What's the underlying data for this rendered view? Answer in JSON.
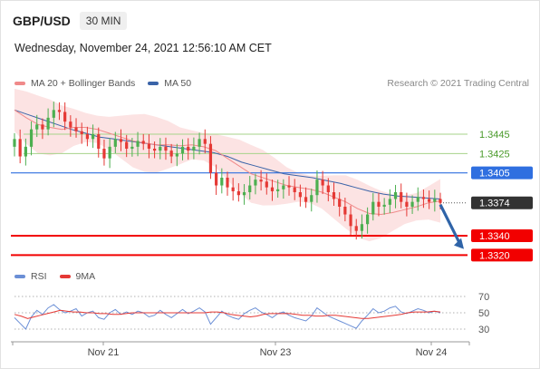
{
  "header": {
    "symbol": "GBP/USD",
    "interval": "30 MIN",
    "datetime": "Wednesday, November 24, 2021 12:56:10 AM CET"
  },
  "legend": {
    "ma20": "MA 20 + Bollinger Bands",
    "ma50": "MA 50",
    "credit": "Research © 2021 Trading Central"
  },
  "rsi_legend": {
    "rsi": "RSI",
    "ma": "9MA"
  },
  "colors": {
    "bollinger_fill": "#fbdede",
    "ma20": "#f08a8a",
    "ma50": "#3a63a8",
    "up_candle": "#4caf50",
    "down_candle": "#e53935",
    "pivot_green": "#a6d38a",
    "pivot_blue": "#2f6fe0",
    "support_red": "#f20000",
    "current_price": "#333333",
    "rsi": "#6b8fd6",
    "rsi_ma": "#e53935",
    "arrow": "#2f64a8"
  },
  "chart_data": [
    {
      "type": "candlestick",
      "title": "GBP/USD 30 MIN",
      "x_ticks": [
        "Nov 21",
        "Nov 23",
        "Nov 24"
      ],
      "ylim": [
        1.331,
        1.349
      ],
      "price_levels": [
        {
          "label": "1.3445",
          "value": 1.3445,
          "kind": "resistance",
          "color": "#a6d38a"
        },
        {
          "label": "1.3425",
          "value": 1.3425,
          "kind": "resistance",
          "color": "#a6d38a"
        },
        {
          "label": "1.3405",
          "value": 1.3405,
          "kind": "pivot",
          "color": "#2f6fe0"
        },
        {
          "label": "1.3374",
          "value": 1.3374,
          "kind": "last-price",
          "color": "#333333"
        },
        {
          "label": "1.3340",
          "value": 1.334,
          "kind": "support",
          "color": "#f20000"
        },
        {
          "label": "1.3320",
          "value": 1.332,
          "kind": "support",
          "color": "#f20000"
        }
      ],
      "close_path": [
        1.344,
        1.3422,
        1.3432,
        1.345,
        1.3455,
        1.345,
        1.3462,
        1.347,
        1.3468,
        1.3458,
        1.3452,
        1.3448,
        1.3445,
        1.344,
        1.3445,
        1.343,
        1.342,
        1.3432,
        1.344,
        1.3437,
        1.343,
        1.3432,
        1.3438,
        1.3435,
        1.343,
        1.3428,
        1.3432,
        1.3428,
        1.3422,
        1.3425,
        1.3432,
        1.3428,
        1.3432,
        1.344,
        1.3435,
        1.3405,
        1.3392,
        1.34,
        1.339,
        1.3386,
        1.3382,
        1.3385,
        1.3392,
        1.3398,
        1.3396,
        1.339,
        1.3386,
        1.3388,
        1.3392,
        1.339,
        1.3385,
        1.338,
        1.3375,
        1.3382,
        1.3398,
        1.3392,
        1.3385,
        1.3378,
        1.337,
        1.3362,
        1.335,
        1.3345,
        1.3352,
        1.3362,
        1.3375,
        1.337,
        1.3372,
        1.3378,
        1.3385,
        1.3375,
        1.337,
        1.3375,
        1.338,
        1.3378,
        1.3375,
        1.3378,
        1.3374
      ],
      "ma20": [
        1.347,
        1.3462,
        1.3455,
        1.3452,
        1.345,
        1.3452,
        1.3452,
        1.345,
        1.3446,
        1.3442,
        1.3438,
        1.3436,
        1.3434,
        1.3434,
        1.3433,
        1.3434,
        1.3432,
        1.3428,
        1.342,
        1.3412,
        1.3404,
        1.34,
        1.3396,
        1.3392,
        1.339,
        1.3388,
        1.3385,
        1.338,
        1.3375,
        1.3368,
        1.3363,
        1.3362,
        1.3364,
        1.3367,
        1.337,
        1.3374,
        1.3376
      ],
      "ma50": [
        1.347,
        1.3465,
        1.346,
        1.3455,
        1.345,
        1.3446,
        1.3442,
        1.344,
        1.3438,
        1.3436,
        1.3434,
        1.3432,
        1.343,
        1.3428,
        1.3426,
        1.3422,
        1.3416,
        1.3412,
        1.3408,
        1.3404,
        1.3402,
        1.34,
        1.3397,
        1.3394,
        1.339,
        1.3386,
        1.3383,
        1.3381,
        1.338,
        1.3379,
        1.3378
      ]
    },
    {
      "type": "line",
      "title": "RSI",
      "ylim": [
        20,
        80
      ],
      "y_ticks": [
        "70",
        "50",
        "30"
      ],
      "series": [
        {
          "name": "RSI",
          "values": [
            44,
            37,
            30,
            45,
            53,
            48,
            56,
            60,
            54,
            50,
            52,
            55,
            46,
            50,
            52,
            44,
            42,
            50,
            54,
            48,
            51,
            48,
            52,
            50,
            45,
            47,
            53,
            48,
            44,
            49,
            54,
            49,
            52,
            56,
            51,
            36,
            44,
            52,
            47,
            44,
            42,
            49,
            53,
            56,
            51,
            48,
            44,
            49,
            51,
            47,
            44,
            42,
            40,
            46,
            56,
            51,
            46,
            43,
            40,
            37,
            34,
            31,
            40,
            47,
            55,
            50,
            52,
            56,
            58,
            51,
            49,
            52,
            55,
            53,
            50,
            52,
            50
          ]
        },
        {
          "name": "9MA",
          "values": [
            48,
            46,
            43,
            45,
            47,
            49,
            51,
            53,
            52,
            51,
            51,
            50,
            50,
            49,
            49,
            48,
            48,
            49,
            50,
            50,
            50,
            50,
            50,
            50,
            50,
            50,
            50,
            50,
            50,
            50,
            51,
            51,
            50,
            48,
            47,
            46,
            45,
            46,
            48,
            49,
            49,
            49,
            49,
            48,
            47,
            47,
            46,
            46,
            47,
            47,
            46,
            45,
            44,
            43,
            43,
            44,
            45,
            46,
            47,
            48,
            50,
            51,
            51,
            51,
            52,
            51
          ]
        }
      ]
    }
  ]
}
